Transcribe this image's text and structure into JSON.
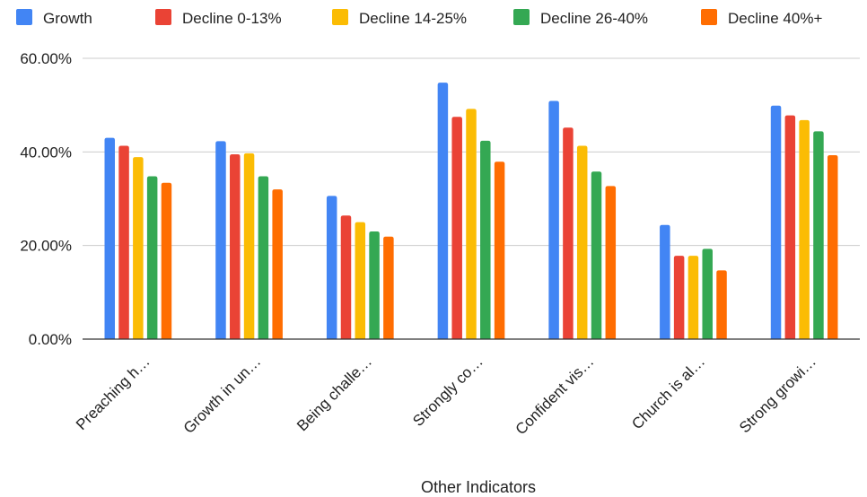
{
  "chart_data": {
    "type": "bar",
    "xlabel": "Other Indicators",
    "ylabel": "",
    "ylim": [
      0,
      60
    ],
    "yticks": [
      "0.00%",
      "20.00%",
      "40.00%",
      "60.00%"
    ],
    "y_tick_values": [
      0,
      20,
      40,
      60
    ],
    "legend_position": "top",
    "grid": true,
    "categories": [
      "Preaching h…",
      "Growth in un…",
      "Being challe…",
      "Strongly co…",
      "Confident vis…",
      "Church is al…",
      "Strong growi…"
    ],
    "series": [
      {
        "name": "Growth",
        "color": "#4285F4",
        "values": [
          43.0,
          42.3,
          30.6,
          54.8,
          50.9,
          24.4,
          49.9
        ]
      },
      {
        "name": "Decline 0-13%",
        "color": "#EA4335",
        "values": [
          41.3,
          39.5,
          26.4,
          47.5,
          45.2,
          17.8,
          47.8
        ]
      },
      {
        "name": "Decline 14-25%",
        "color": "#FBBC04",
        "values": [
          38.9,
          39.7,
          25.0,
          49.2,
          41.3,
          17.8,
          46.8
        ]
      },
      {
        "name": "Decline 26-40%",
        "color": "#34A853",
        "values": [
          34.8,
          34.8,
          23.0,
          42.4,
          35.8,
          19.3,
          44.4
        ]
      },
      {
        "name": "Decline 40%+",
        "color": "#FF6D01",
        "values": [
          33.4,
          32.0,
          21.9,
          37.9,
          32.7,
          14.7,
          39.3
        ]
      }
    ]
  }
}
